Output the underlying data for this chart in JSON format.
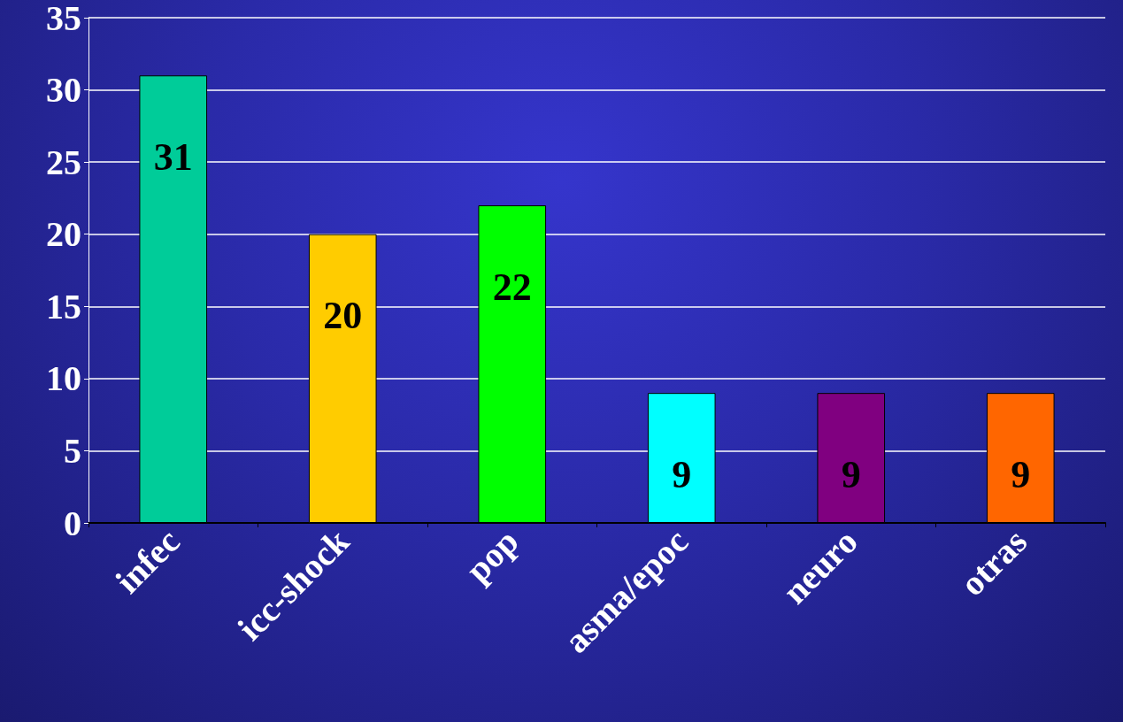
{
  "chart_data": {
    "type": "bar",
    "categories": [
      "infec",
      "icc-shock",
      "pop",
      "asma/epoc",
      "neuro",
      "otras"
    ],
    "values": [
      31,
      20,
      22,
      9,
      9,
      9
    ],
    "colors": [
      "#00cc99",
      "#ffcc00",
      "#00ff00",
      "#00ffff",
      "#800080",
      "#ff6600"
    ],
    "ylim": [
      0,
      35
    ],
    "yticks": [
      0,
      5,
      10,
      15,
      20,
      25,
      30,
      35
    ],
    "grid": "y",
    "data_labels": true
  }
}
